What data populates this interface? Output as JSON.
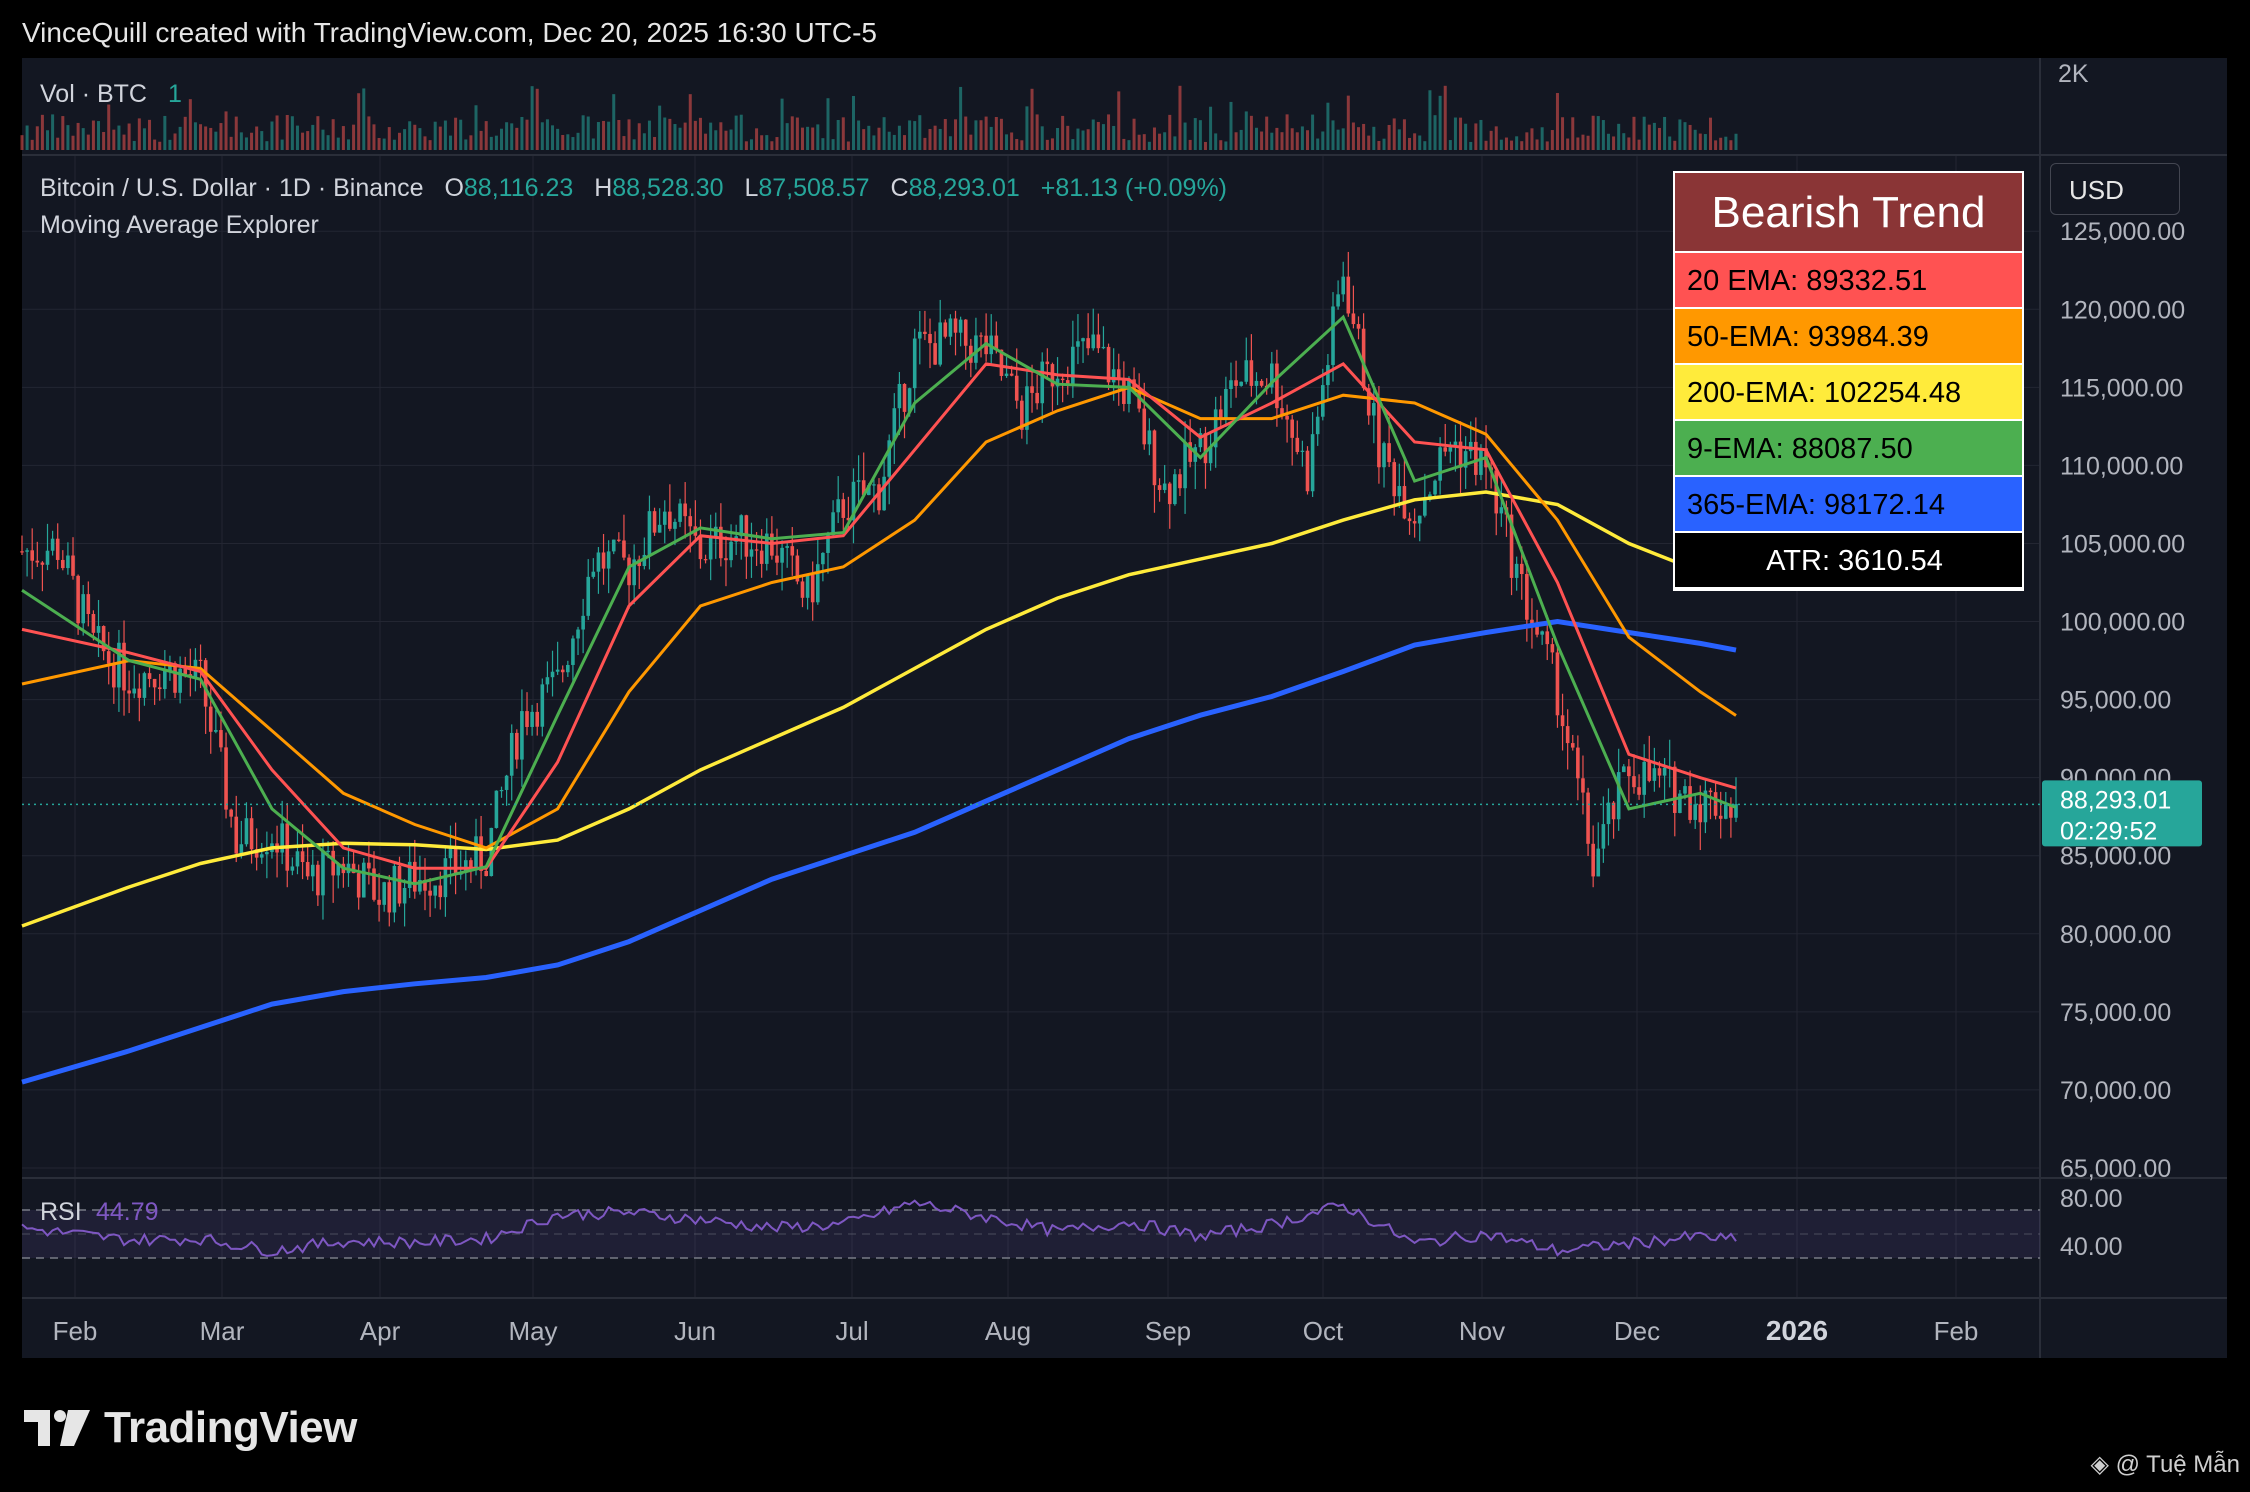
{
  "header": {
    "attribution": "VinceQuill created with TradingView.com, Dec 20, 2025 16:30 UTC-5"
  },
  "volume_pane": {
    "label": "Vol · BTC",
    "value": "1",
    "axis_label": "2K"
  },
  "symbol": {
    "name": "Bitcoin / U.S. Dollar · 1D · Binance",
    "o_label": "O",
    "o_value": "88,116.23",
    "h_label": "H",
    "h_value": "88,528.30",
    "l_label": "L",
    "l_value": "87,508.57",
    "c_label": "C",
    "c_value": "88,293.01",
    "change": "+81.13 (+0.09%)",
    "indicator": "Moving Average Explorer"
  },
  "price_axis": {
    "currency_button": "USD",
    "labels": [
      "125,000.00",
      "120,000.00",
      "115,000.00",
      "110,000.00",
      "105,000.00",
      "100,000.00",
      "95,000.00",
      "90,000.00",
      "85,000.00",
      "80,000.00",
      "75,000.00",
      "70,000.00",
      "65,000.00"
    ],
    "current_price": "88,293.01",
    "countdown": "02:29:52"
  },
  "trend_box": {
    "title": "Bearish Trend",
    "rows": [
      {
        "text": "20 EMA: 89332.51",
        "bg": "#ff5252",
        "fg": "#000000"
      },
      {
        "text": "50-EMA: 93984.39",
        "bg": "#ff9800",
        "fg": "#000000"
      },
      {
        "text": "200-EMA: 102254.48",
        "bg": "#ffeb3b",
        "fg": "#000000"
      },
      {
        "text": "9-EMA: 88087.50",
        "bg": "#4caf50",
        "fg": "#000000"
      },
      {
        "text": "365-EMA: 98172.14",
        "bg": "#2962ff",
        "fg": "#000000"
      },
      {
        "text": "ATR: 3610.54",
        "bg": "#000000",
        "fg": "#ffffff"
      }
    ]
  },
  "rsi_pane": {
    "label": "RSI",
    "value": "44.79",
    "axis_labels": [
      "80.00",
      "40.00"
    ]
  },
  "time_axis": {
    "labels": [
      {
        "text": "Feb",
        "bold": false
      },
      {
        "text": "Mar",
        "bold": false
      },
      {
        "text": "Apr",
        "bold": false
      },
      {
        "text": "May",
        "bold": false
      },
      {
        "text": "Jun",
        "bold": false
      },
      {
        "text": "Jul",
        "bold": false
      },
      {
        "text": "Aug",
        "bold": false
      },
      {
        "text": "Sep",
        "bold": false
      },
      {
        "text": "Oct",
        "bold": false
      },
      {
        "text": "Nov",
        "bold": false
      },
      {
        "text": "Dec",
        "bold": false
      },
      {
        "text": "2026",
        "bold": true
      },
      {
        "text": "Feb",
        "bold": false
      }
    ]
  },
  "footer": {
    "logo_text": "TradingView",
    "watermark": "@ Tuệ Mẫn"
  },
  "colors": {
    "up": "#26a69a",
    "down": "#ef5350",
    "ema9": "#4caf50",
    "ema20": "#ff5252",
    "ema50": "#ff9800",
    "ema200": "#ffeb3b",
    "ema365": "#2962ff",
    "rsi": "#7e57c2"
  },
  "chart_data": {
    "type": "candlestick",
    "series_type": "line",
    "x_range": [
      "2025-01-18",
      "2025-12-20"
    ],
    "y_range": [
      65000,
      127000
    ],
    "price_closes": [
      {
        "x": "2025-01-18",
        "y": 104500
      },
      {
        "x": "2025-01-25",
        "y": 104800
      },
      {
        "x": "2025-02-01",
        "y": 98500
      },
      {
        "x": "2025-02-08",
        "y": 96500
      },
      {
        "x": "2025-02-15",
        "y": 97000
      },
      {
        "x": "2025-02-22",
        "y": 96200
      },
      {
        "x": "2025-03-01",
        "y": 86000
      },
      {
        "x": "2025-03-08",
        "y": 86500
      },
      {
        "x": "2025-03-15",
        "y": 83500
      },
      {
        "x": "2025-03-22",
        "y": 84500
      },
      {
        "x": "2025-03-29",
        "y": 82500
      },
      {
        "x": "2025-04-05",
        "y": 83500
      },
      {
        "x": "2025-04-12",
        "y": 84000
      },
      {
        "x": "2025-04-19",
        "y": 85000
      },
      {
        "x": "2025-04-26",
        "y": 94000
      },
      {
        "x": "2025-05-03",
        "y": 96000
      },
      {
        "x": "2025-05-10",
        "y": 104000
      },
      {
        "x": "2025-05-17",
        "y": 103500
      },
      {
        "x": "2025-05-24",
        "y": 107500
      },
      {
        "x": "2025-05-31",
        "y": 104500
      },
      {
        "x": "2025-06-07",
        "y": 105500
      },
      {
        "x": "2025-06-14",
        "y": 105000
      },
      {
        "x": "2025-06-21",
        "y": 101500
      },
      {
        "x": "2025-06-28",
        "y": 107500
      },
      {
        "x": "2025-07-05",
        "y": 108500
      },
      {
        "x": "2025-07-12",
        "y": 117500
      },
      {
        "x": "2025-07-19",
        "y": 118000
      },
      {
        "x": "2025-07-26",
        "y": 117500
      },
      {
        "x": "2025-08-02",
        "y": 113500
      },
      {
        "x": "2025-08-09",
        "y": 116500
      },
      {
        "x": "2025-08-16",
        "y": 117500
      },
      {
        "x": "2025-08-23",
        "y": 114500
      },
      {
        "x": "2025-08-30",
        "y": 108500
      },
      {
        "x": "2025-09-06",
        "y": 111000
      },
      {
        "x": "2025-09-13",
        "y": 115500
      },
      {
        "x": "2025-09-20",
        "y": 115800
      },
      {
        "x": "2025-09-27",
        "y": 109500
      },
      {
        "x": "2025-10-04",
        "y": 122500
      },
      {
        "x": "2025-10-11",
        "y": 111000
      },
      {
        "x": "2025-10-18",
        "y": 107000
      },
      {
        "x": "2025-10-25",
        "y": 111500
      },
      {
        "x": "2025-11-01",
        "y": 110000
      },
      {
        "x": "2025-11-08",
        "y": 102000
      },
      {
        "x": "2025-11-15",
        "y": 95500
      },
      {
        "x": "2025-11-22",
        "y": 84500
      },
      {
        "x": "2025-11-29",
        "y": 90500
      },
      {
        "x": "2025-12-06",
        "y": 89500
      },
      {
        "x": "2025-12-13",
        "y": 88500
      },
      {
        "x": "2025-12-20",
        "y": 88293
      }
    ],
    "ema9": [
      {
        "x": "2025-01-18",
        "y": 102000
      },
      {
        "x": "2025-02-08",
        "y": 97500
      },
      {
        "x": "2025-02-22",
        "y": 96300
      },
      {
        "x": "2025-03-08",
        "y": 88000
      },
      {
        "x": "2025-03-22",
        "y": 84200
      },
      {
        "x": "2025-04-05",
        "y": 83200
      },
      {
        "x": "2025-04-19",
        "y": 84300
      },
      {
        "x": "2025-05-03",
        "y": 94000
      },
      {
        "x": "2025-05-17",
        "y": 103500
      },
      {
        "x": "2025-05-31",
        "y": 106000
      },
      {
        "x": "2025-06-14",
        "y": 105300
      },
      {
        "x": "2025-06-28",
        "y": 105700
      },
      {
        "x": "2025-07-12",
        "y": 114000
      },
      {
        "x": "2025-07-26",
        "y": 117800
      },
      {
        "x": "2025-08-09",
        "y": 115200
      },
      {
        "x": "2025-08-23",
        "y": 115000
      },
      {
        "x": "2025-09-06",
        "y": 110500
      },
      {
        "x": "2025-09-20",
        "y": 115300
      },
      {
        "x": "2025-10-04",
        "y": 119500
      },
      {
        "x": "2025-10-18",
        "y": 109000
      },
      {
        "x": "2025-11-01",
        "y": 110500
      },
      {
        "x": "2025-11-15",
        "y": 98500
      },
      {
        "x": "2025-11-29",
        "y": 88000
      },
      {
        "x": "2025-12-13",
        "y": 89000
      },
      {
        "x": "2025-12-20",
        "y": 88087.5
      }
    ],
    "ema20": [
      {
        "x": "2025-01-18",
        "y": 99500
      },
      {
        "x": "2025-02-08",
        "y": 98000
      },
      {
        "x": "2025-02-22",
        "y": 96800
      },
      {
        "x": "2025-03-08",
        "y": 90500
      },
      {
        "x": "2025-03-22",
        "y": 85500
      },
      {
        "x": "2025-04-05",
        "y": 84200
      },
      {
        "x": "2025-04-19",
        "y": 84200
      },
      {
        "x": "2025-05-03",
        "y": 91000
      },
      {
        "x": "2025-05-17",
        "y": 101000
      },
      {
        "x": "2025-05-31",
        "y": 105500
      },
      {
        "x": "2025-06-14",
        "y": 105000
      },
      {
        "x": "2025-06-28",
        "y": 105500
      },
      {
        "x": "2025-07-12",
        "y": 111000
      },
      {
        "x": "2025-07-26",
        "y": 116500
      },
      {
        "x": "2025-08-09",
        "y": 115800
      },
      {
        "x": "2025-08-23",
        "y": 115500
      },
      {
        "x": "2025-09-06",
        "y": 111800
      },
      {
        "x": "2025-09-20",
        "y": 114000
      },
      {
        "x": "2025-10-04",
        "y": 116500
      },
      {
        "x": "2025-10-18",
        "y": 111500
      },
      {
        "x": "2025-11-01",
        "y": 111000
      },
      {
        "x": "2025-11-15",
        "y": 102500
      },
      {
        "x": "2025-11-29",
        "y": 91500
      },
      {
        "x": "2025-12-13",
        "y": 90000
      },
      {
        "x": "2025-12-20",
        "y": 89332.51
      }
    ],
    "ema50": [
      {
        "x": "2025-01-18",
        "y": 96000
      },
      {
        "x": "2025-02-08",
        "y": 97500
      },
      {
        "x": "2025-02-22",
        "y": 97000
      },
      {
        "x": "2025-03-08",
        "y": 93000
      },
      {
        "x": "2025-03-22",
        "y": 89000
      },
      {
        "x": "2025-04-05",
        "y": 87000
      },
      {
        "x": "2025-04-19",
        "y": 85500
      },
      {
        "x": "2025-05-03",
        "y": 88000
      },
      {
        "x": "2025-05-17",
        "y": 95500
      },
      {
        "x": "2025-05-31",
        "y": 101000
      },
      {
        "x": "2025-06-14",
        "y": 102500
      },
      {
        "x": "2025-06-28",
        "y": 103500
      },
      {
        "x": "2025-07-12",
        "y": 106500
      },
      {
        "x": "2025-07-26",
        "y": 111500
      },
      {
        "x": "2025-08-09",
        "y": 113500
      },
      {
        "x": "2025-08-23",
        "y": 115000
      },
      {
        "x": "2025-09-06",
        "y": 113000
      },
      {
        "x": "2025-09-20",
        "y": 113000
      },
      {
        "x": "2025-10-04",
        "y": 114500
      },
      {
        "x": "2025-10-18",
        "y": 114000
      },
      {
        "x": "2025-11-01",
        "y": 112000
      },
      {
        "x": "2025-11-15",
        "y": 106500
      },
      {
        "x": "2025-11-29",
        "y": 99000
      },
      {
        "x": "2025-12-13",
        "y": 95500
      },
      {
        "x": "2025-12-20",
        "y": 93984.39
      }
    ],
    "ema200": [
      {
        "x": "2025-01-18",
        "y": 80500
      },
      {
        "x": "2025-02-08",
        "y": 83000
      },
      {
        "x": "2025-02-22",
        "y": 84500
      },
      {
        "x": "2025-03-08",
        "y": 85500
      },
      {
        "x": "2025-03-22",
        "y": 85800
      },
      {
        "x": "2025-04-05",
        "y": 85700
      },
      {
        "x": "2025-04-19",
        "y": 85400
      },
      {
        "x": "2025-05-03",
        "y": 86000
      },
      {
        "x": "2025-05-17",
        "y": 88000
      },
      {
        "x": "2025-05-31",
        "y": 90500
      },
      {
        "x": "2025-06-14",
        "y": 92500
      },
      {
        "x": "2025-06-28",
        "y": 94500
      },
      {
        "x": "2025-07-12",
        "y": 97000
      },
      {
        "x": "2025-07-26",
        "y": 99500
      },
      {
        "x": "2025-08-09",
        "y": 101500
      },
      {
        "x": "2025-08-23",
        "y": 103000
      },
      {
        "x": "2025-09-06",
        "y": 104000
      },
      {
        "x": "2025-09-20",
        "y": 105000
      },
      {
        "x": "2025-10-04",
        "y": 106500
      },
      {
        "x": "2025-10-18",
        "y": 107800
      },
      {
        "x": "2025-11-01",
        "y": 108300
      },
      {
        "x": "2025-11-15",
        "y": 107500
      },
      {
        "x": "2025-11-29",
        "y": 105000
      },
      {
        "x": "2025-12-13",
        "y": 103200
      },
      {
        "x": "2025-12-20",
        "y": 102254.48
      }
    ],
    "ema365": [
      {
        "x": "2025-01-18",
        "y": 70500
      },
      {
        "x": "2025-02-08",
        "y": 72500
      },
      {
        "x": "2025-02-22",
        "y": 74000
      },
      {
        "x": "2025-03-08",
        "y": 75500
      },
      {
        "x": "2025-03-22",
        "y": 76300
      },
      {
        "x": "2025-04-05",
        "y": 76800
      },
      {
        "x": "2025-04-19",
        "y": 77200
      },
      {
        "x": "2025-05-03",
        "y": 78000
      },
      {
        "x": "2025-05-17",
        "y": 79500
      },
      {
        "x": "2025-05-31",
        "y": 81500
      },
      {
        "x": "2025-06-14",
        "y": 83500
      },
      {
        "x": "2025-06-28",
        "y": 85000
      },
      {
        "x": "2025-07-12",
        "y": 86500
      },
      {
        "x": "2025-07-26",
        "y": 88500
      },
      {
        "x": "2025-08-09",
        "y": 90500
      },
      {
        "x": "2025-08-23",
        "y": 92500
      },
      {
        "x": "2025-09-06",
        "y": 94000
      },
      {
        "x": "2025-09-20",
        "y": 95200
      },
      {
        "x": "2025-10-04",
        "y": 96800
      },
      {
        "x": "2025-10-18",
        "y": 98500
      },
      {
        "x": "2025-11-01",
        "y": 99300
      },
      {
        "x": "2025-11-15",
        "y": 100000
      },
      {
        "x": "2025-11-29",
        "y": 99300
      },
      {
        "x": "2025-12-13",
        "y": 98600
      },
      {
        "x": "2025-12-20",
        "y": 98172.14
      }
    ],
    "rsi": [
      {
        "x": "2025-01-18",
        "y": 55
      },
      {
        "x": "2025-02-08",
        "y": 45
      },
      {
        "x": "2025-02-22",
        "y": 46
      },
      {
        "x": "2025-03-08",
        "y": 36
      },
      {
        "x": "2025-03-22",
        "y": 44
      },
      {
        "x": "2025-04-05",
        "y": 43
      },
      {
        "x": "2025-04-19",
        "y": 46
      },
      {
        "x": "2025-05-03",
        "y": 66
      },
      {
        "x": "2025-05-17",
        "y": 68
      },
      {
        "x": "2025-05-31",
        "y": 62
      },
      {
        "x": "2025-06-14",
        "y": 55
      },
      {
        "x": "2025-06-28",
        "y": 58
      },
      {
        "x": "2025-07-12",
        "y": 76
      },
      {
        "x": "2025-07-26",
        "y": 64
      },
      {
        "x": "2025-08-09",
        "y": 52
      },
      {
        "x": "2025-08-23",
        "y": 60
      },
      {
        "x": "2025-09-06",
        "y": 48
      },
      {
        "x": "2025-09-20",
        "y": 58
      },
      {
        "x": "2025-10-04",
        "y": 74
      },
      {
        "x": "2025-10-18",
        "y": 42
      },
      {
        "x": "2025-11-01",
        "y": 50
      },
      {
        "x": "2025-11-15",
        "y": 36
      },
      {
        "x": "2025-11-29",
        "y": 42
      },
      {
        "x": "2025-12-13",
        "y": 48
      },
      {
        "x": "2025-12-20",
        "y": 44.79
      }
    ],
    "rsi_levels": [
      70,
      50,
      30
    ],
    "grid": true
  }
}
